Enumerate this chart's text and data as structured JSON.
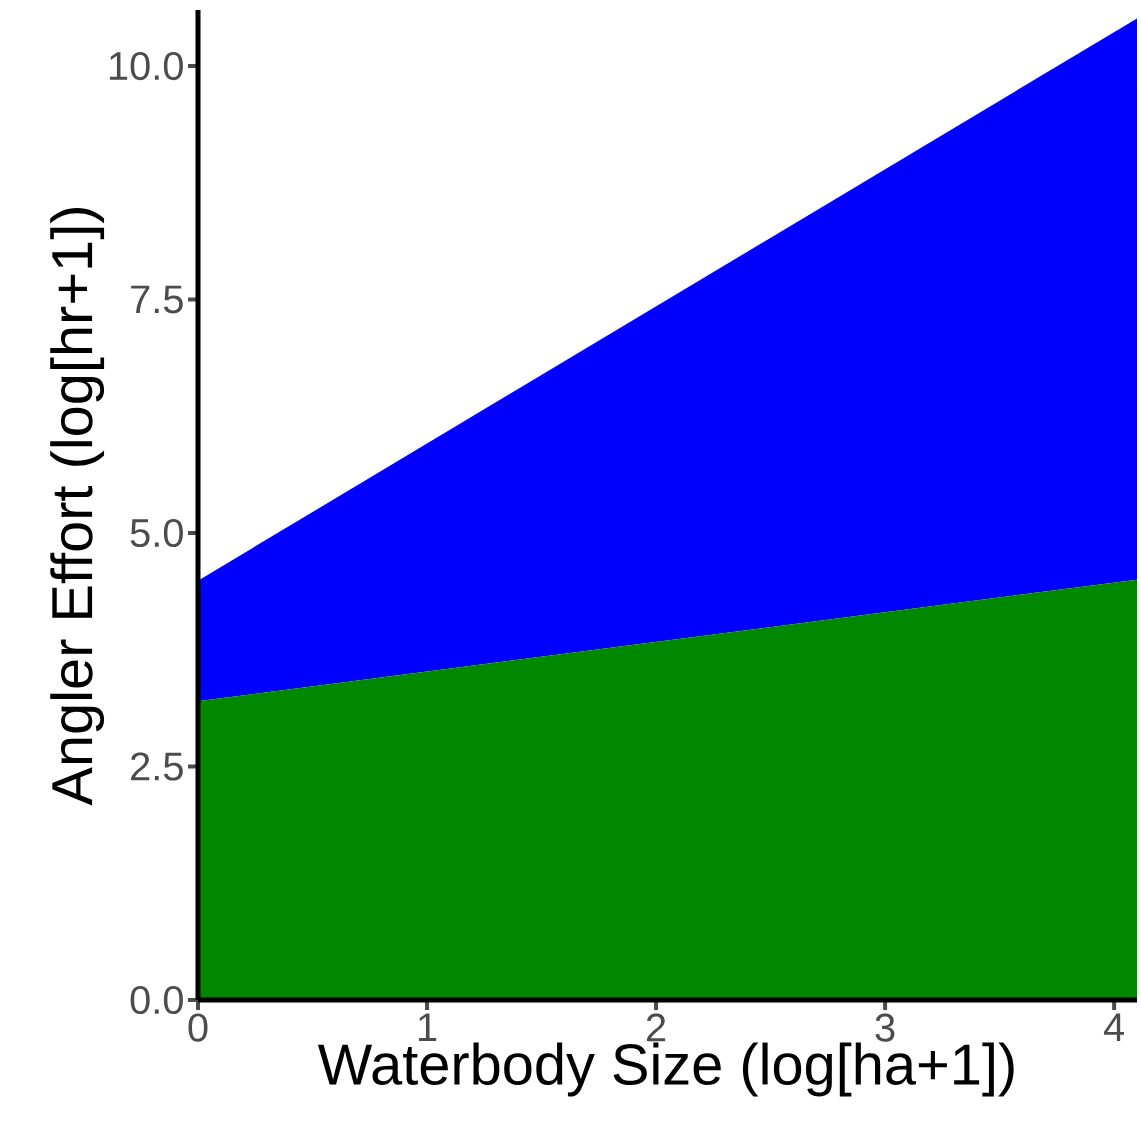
{
  "chart_data": {
    "type": "area",
    "stacked": true,
    "xlabel": "Waterbody Size (log[ha+1])",
    "ylabel": "Angler Effort (log[hr+1])",
    "x": [
      0,
      4.1
    ],
    "series": [
      {
        "color": "#008800",
        "values": [
          3.2,
          4.5
        ]
      },
      {
        "color": "#0000ff",
        "values": [
          1.29,
          6.01
        ]
      }
    ],
    "xlim": [
      0,
      4.1
    ],
    "ylim": [
      0,
      10.6
    ],
    "xticks": [
      0,
      1,
      2,
      3,
      4
    ],
    "yticks": [
      {
        "value": 0,
        "label": "0.0"
      },
      {
        "value": 2.5,
        "label": "2.5"
      },
      {
        "value": 5,
        "label": "5.0"
      },
      {
        "value": 7.5,
        "label": "7.5"
      },
      {
        "value": 10,
        "label": "10.0"
      }
    ]
  }
}
